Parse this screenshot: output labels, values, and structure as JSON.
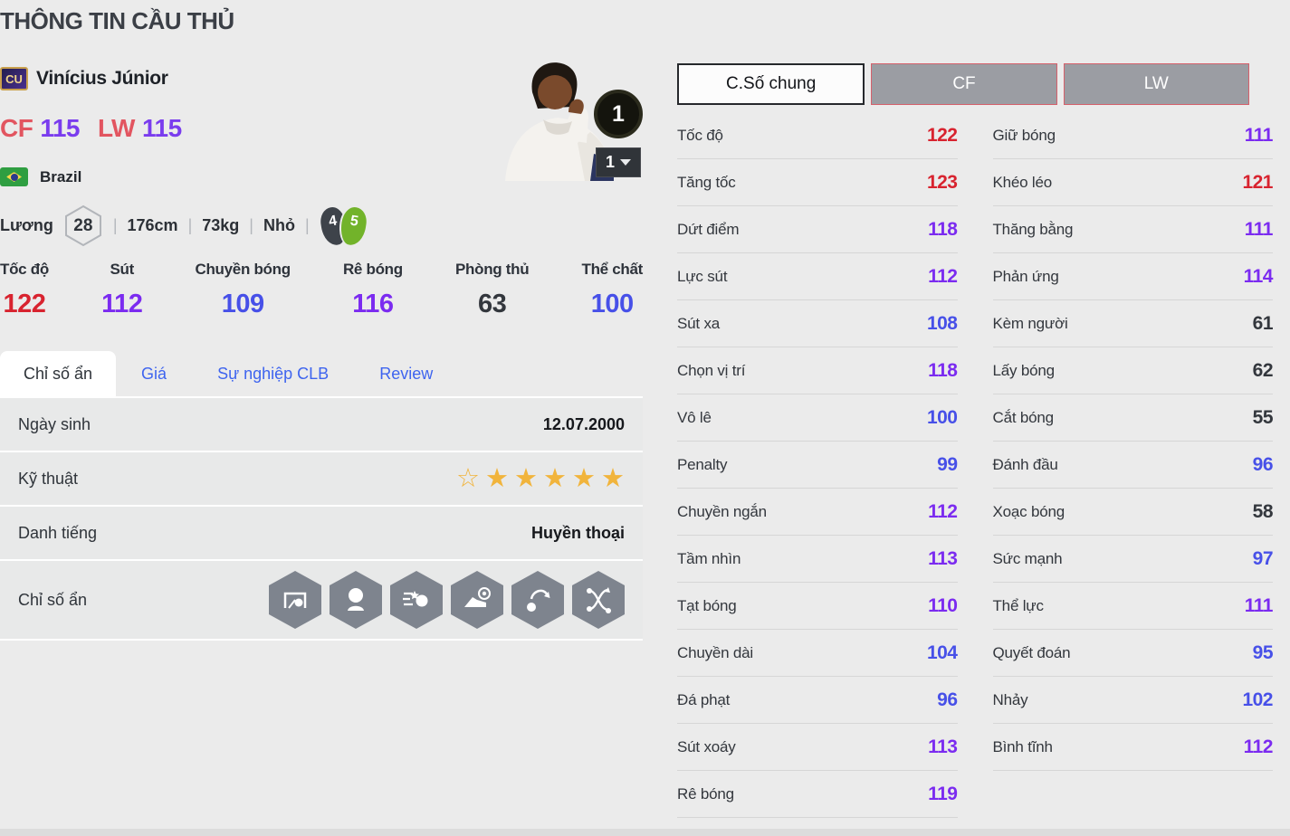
{
  "page": {
    "title": "THÔNG TIN CẦU THỦ"
  },
  "player": {
    "badge": "CU",
    "name": "Vinícius Júnior",
    "positions": [
      {
        "pos": "CF",
        "ovr": 115
      },
      {
        "pos": "LW",
        "ovr": 115
      }
    ],
    "nation": "Brazil",
    "meta": {
      "salary_label": "Lương",
      "salary": "28",
      "height": "176cm",
      "weight": "73kg",
      "body_type": "Nhỏ",
      "weak_foot": "4",
      "strong_foot": "5"
    },
    "level_badge": "1",
    "level_selected": "1"
  },
  "summary_stats": [
    {
      "label": "Tốc độ",
      "value": 122
    },
    {
      "label": "Sút",
      "value": 112
    },
    {
      "label": "Chuyền bóng",
      "value": 109
    },
    {
      "label": "Rê bóng",
      "value": 116
    },
    {
      "label": "Phòng thủ",
      "value": 63
    },
    {
      "label": "Thể chất",
      "value": 100
    }
  ],
  "tabs": [
    {
      "label": "Chỉ số ẩn",
      "active": true
    },
    {
      "label": "Giá",
      "active": false
    },
    {
      "label": "Sự nghiệp CLB",
      "active": false
    },
    {
      "label": "Review",
      "active": false
    }
  ],
  "info_rows": {
    "birth": {
      "label": "Ngày sinh",
      "value": "12.07.2000"
    },
    "skill": {
      "label": "Kỹ thuật",
      "stars_outline": 1,
      "stars_filled": 5
    },
    "fame": {
      "label": "Danh tiếng",
      "value": "Huyền thoại"
    },
    "hidden": {
      "label": "Chỉ số ẩn",
      "icons": [
        "goal-poacher-icon",
        "header-icon",
        "power-shot-icon",
        "accurate-shot-icon",
        "chip-shot-icon",
        "flair-dribble-icon"
      ]
    }
  },
  "stat_buttons": [
    {
      "label": "C.Số chung",
      "active": true
    },
    {
      "label": "CF",
      "active": false
    },
    {
      "label": "LW",
      "active": false
    }
  ],
  "detail_stats": {
    "left": [
      {
        "label": "Tốc độ",
        "value": 122
      },
      {
        "label": "Tăng tốc",
        "value": 123
      },
      {
        "label": "Dứt điểm",
        "value": 118
      },
      {
        "label": "Lực sút",
        "value": 112
      },
      {
        "label": "Sút xa",
        "value": 108
      },
      {
        "label": "Chọn vị trí",
        "value": 118
      },
      {
        "label": "Vô lê",
        "value": 100
      },
      {
        "label": "Penalty",
        "value": 99
      },
      {
        "label": "Chuyền ngắn",
        "value": 112
      },
      {
        "label": "Tầm nhìn",
        "value": 113
      },
      {
        "label": "Tạt bóng",
        "value": 110
      },
      {
        "label": "Chuyền dài",
        "value": 104
      },
      {
        "label": "Đá phạt",
        "value": 96
      },
      {
        "label": "Sút xoáy",
        "value": 113
      },
      {
        "label": "Rê bóng",
        "value": 119
      }
    ],
    "right": [
      {
        "label": "Giữ bóng",
        "value": 111
      },
      {
        "label": "Khéo léo",
        "value": 121
      },
      {
        "label": "Thăng bằng",
        "value": 111
      },
      {
        "label": "Phản ứng",
        "value": 114
      },
      {
        "label": "Kèm người",
        "value": 61
      },
      {
        "label": "Lấy bóng",
        "value": 62
      },
      {
        "label": "Cắt bóng",
        "value": 55
      },
      {
        "label": "Đánh đầu",
        "value": 96
      },
      {
        "label": "Xoạc bóng",
        "value": 58
      },
      {
        "label": "Sức mạnh",
        "value": 97
      },
      {
        "label": "Thể lực",
        "value": 111
      },
      {
        "label": "Quyết đoán",
        "value": 95
      },
      {
        "label": "Nhảy",
        "value": 102
      },
      {
        "label": "Bình tĩnh",
        "value": 112
      }
    ]
  },
  "colors": {
    "tier_red": "#d8232f",
    "tier_purple": "#7b2bf0",
    "tier_blue": "#4750e8",
    "tier_dark": "#33373d",
    "tab_link": "#3e64ef",
    "star_gold": "#f1b43c",
    "strong_foot_green": "#72b32a",
    "pos_button_border": "#d5606b"
  }
}
